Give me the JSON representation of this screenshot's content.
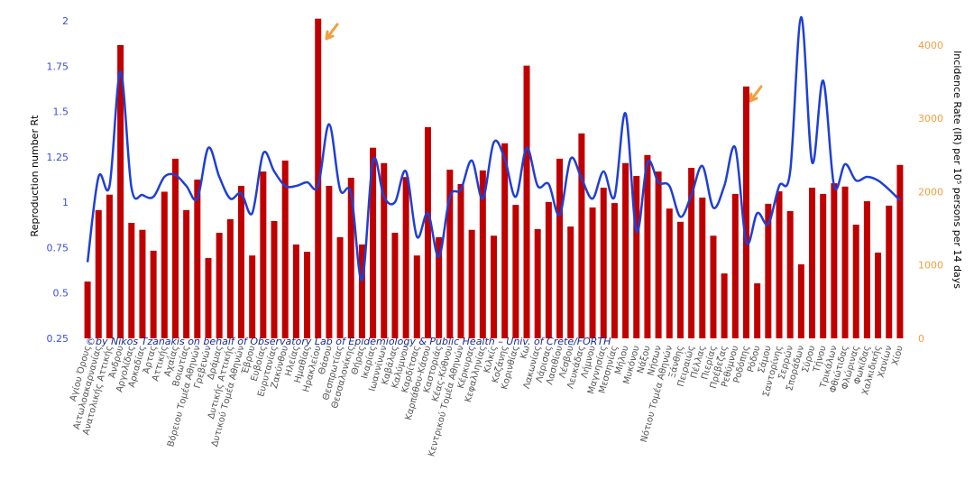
{
  "chart_data": {
    "type": "bar_line",
    "y_label": "Reproduction number Rt",
    "y2_label": "Incidence Rate (IR) per 10⁵ persons per 14 days",
    "annotation": "©by Nikos Tzanakis on behalf of Observatory Lab of Epidemiology & Public Health – Univ. of Crete/FORTH",
    "categories": [
      "Αγίου Όρους",
      "Αιτωλοακαρνανίας",
      "Ανατολικής Αττικής",
      "Άνδρου",
      "Αργολίδας",
      "Αρκαδίας",
      "Άρτας",
      "Αττικής",
      "Αχαΐας",
      "Βοιωτίας",
      "Βόρειου Τομέα Αθηνών",
      "Γρεβενών",
      "Δράμας",
      "Δυτικής Αττικής",
      "Δυτικού Τομέα Αθηνών",
      "Έβρου",
      "Ευβοίας",
      "Ευρυτανίας",
      "Ζακύνθου",
      "Ηλείας",
      "Ημαθίας",
      "Ηρακλείου",
      "Θάσου",
      "Θεσπρωτίας",
      "Θεσσαλονίκης",
      "Θήρας",
      "Ικαρίας",
      "Ιωαννίνων",
      "Καβάλας",
      "Καλύμνου",
      "Καρδίτσας",
      "Καρπάθου-Κάσου",
      "Καστοριάς",
      "Κέας-Κύθνου",
      "Κεντρικού Τομέα Αθηνών",
      "Κέρκυρας",
      "Κεφαλληνίας",
      "Κιλκίς",
      "Κοζάνης",
      "Κορινθίας",
      "Κω",
      "Λακωνίας",
      "Λάρισας",
      "Λασιθίου",
      "Λέσβου",
      "Λευκάδας",
      "Λήμνου",
      "Μαγνησίας",
      "Μεσσηνίας",
      "Μήλου",
      "Μυκόνου",
      "Νάξου",
      "Νήσων",
      "Νότιου Τομέα Αθηνών",
      "Ξάνθης",
      "Πειραιώς",
      "Πέλλας",
      "Πιερίας",
      "Πρέβεζας",
      "Ρεθύμνου",
      "Ροδόπης",
      "Ρόδου",
      "Σάμου",
      "Σαντορίνης",
      "Σερρών",
      "Σποράδων",
      "Σύρου",
      "Τήνου",
      "Τρικάλων",
      "Φθιώτιδας",
      "Φλώρινας",
      "Φωκίδας",
      "Χαλκιδικής",
      "Χανίων",
      "Χίου"
    ],
    "series": [
      {
        "name": "Incidence Rate",
        "type": "bar",
        "axis": "y2",
        "color": "#c00000",
        "values": [
          775,
          1750,
          1960,
          4000,
          1575,
          1480,
          1195,
          2000,
          2450,
          1750,
          2165,
          1095,
          1440,
          1625,
          2080,
          1130,
          2275,
          1600,
          2425,
          1280,
          1180,
          4360,
          2080,
          1380,
          2190,
          1280,
          2600,
          2390,
          1440,
          2200,
          1130,
          2880,
          1380,
          2300,
          2105,
          1480,
          2290,
          1400,
          2660,
          1820,
          3720,
          1490,
          1860,
          2450,
          1525,
          2795,
          1785,
          2055,
          1845,
          2390,
          2215,
          2500,
          2275,
          1770,
          1590,
          2325,
          1920,
          1400,
          885,
          1970,
          3435,
          750,
          1835,
          2005,
          1735,
          1010,
          2055,
          1970,
          2115,
          2070,
          1550,
          1870,
          1170,
          1810,
          2365
        ]
      },
      {
        "name": "Rt",
        "type": "line",
        "axis": "y",
        "color": "#1f3fd6",
        "values": [
          0.67,
          1.14,
          1.09,
          1.72,
          1.08,
          1.04,
          1.03,
          1.14,
          1.15,
          1.09,
          1.02,
          1.3,
          1.14,
          1.02,
          1.05,
          0.94,
          1.27,
          1.17,
          1.09,
          1.09,
          1.11,
          1.09,
          1.43,
          1.07,
          1.05,
          0.57,
          1.23,
          1.03,
          1.0,
          1.17,
          0.81,
          0.94,
          0.7,
          1.03,
          1.07,
          1.23,
          1.02,
          1.33,
          1.24,
          1.03,
          1.3,
          1.09,
          1.1,
          0.93,
          1.24,
          1.13,
          1.02,
          1.17,
          1.03,
          1.49,
          0.84,
          1.22,
          1.11,
          1.09,
          0.92,
          1.04,
          1.2,
          0.97,
          1.09,
          1.3,
          0.78,
          0.94,
          0.88,
          1.09,
          1.17,
          2.02,
          1.22,
          1.67,
          1.09,
          1.21,
          1.12,
          1.14,
          1.12,
          1.07,
          1.01
        ]
      }
    ],
    "ylim": [
      0.25,
      2.04
    ],
    "yticks": [
      0.25,
      0.5,
      0.75,
      1,
      1.25,
      1.5,
      1.75,
      2
    ],
    "y2lim": [
      0,
      4430
    ],
    "y2ticks": [
      0,
      1000,
      2000,
      3000,
      4000
    ],
    "y_color": "#3b4fd8",
    "y2_color": "#f0a040"
  }
}
